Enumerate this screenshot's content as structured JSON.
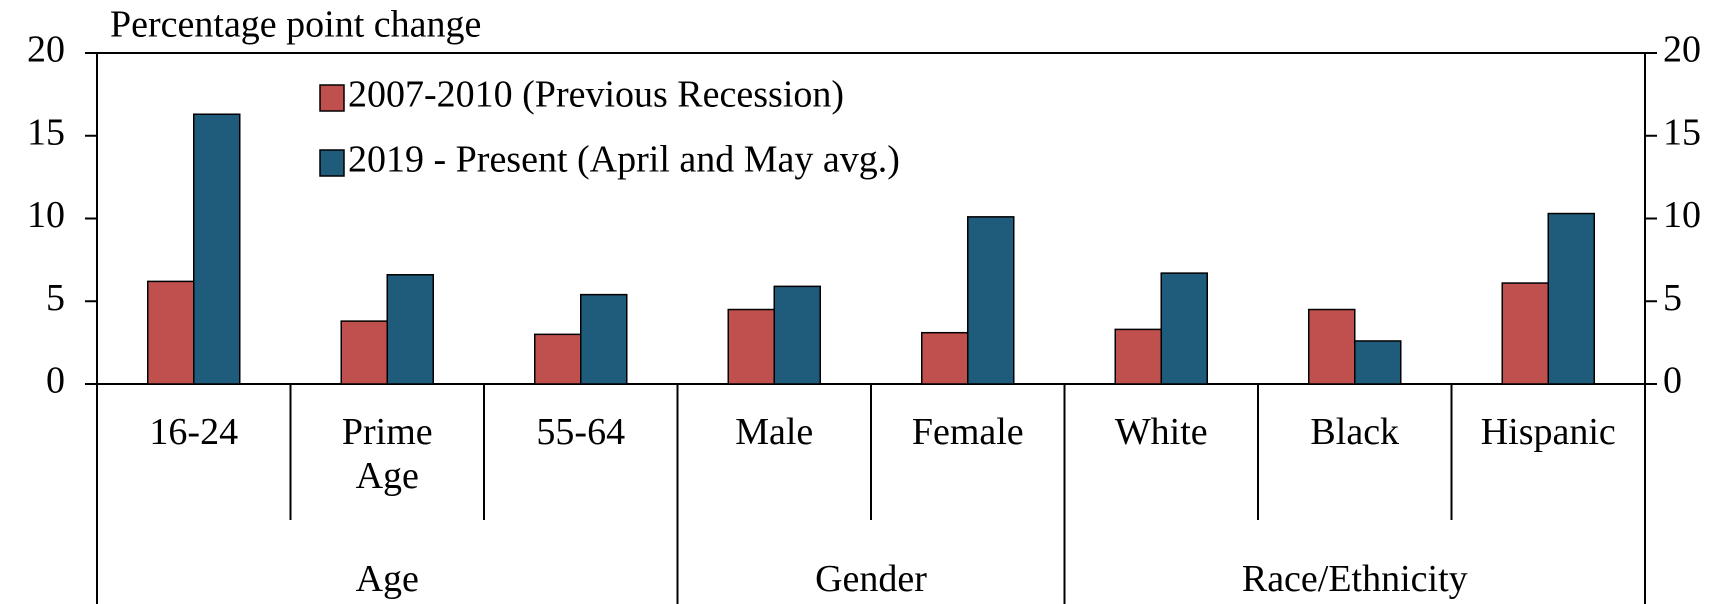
{
  "chart_data": {
    "type": "bar",
    "title": "Percentage point change",
    "groups": [
      {
        "name": "Age",
        "categories": [
          "16-24",
          "Prime Age",
          "55-64"
        ]
      },
      {
        "name": "Gender",
        "categories": [
          "Male",
          "Female"
        ]
      },
      {
        "name": "Race/Ethnicity",
        "categories": [
          "White",
          "Black",
          "Hispanic"
        ]
      }
    ],
    "series": [
      {
        "name": "2007-2010 (Previous Recession)",
        "color": "#c0504d",
        "values": [
          6.2,
          3.8,
          3.0,
          4.5,
          3.1,
          3.3,
          4.5,
          6.1
        ]
      },
      {
        "name": "2019 - Present (April and May avg.)",
        "color": "#1f5b7a",
        "values": [
          16.3,
          6.6,
          5.4,
          5.9,
          10.1,
          6.7,
          2.6,
          10.3
        ]
      }
    ],
    "ylim": [
      0,
      20
    ],
    "yticks": [
      0,
      5,
      10,
      15,
      20
    ]
  }
}
